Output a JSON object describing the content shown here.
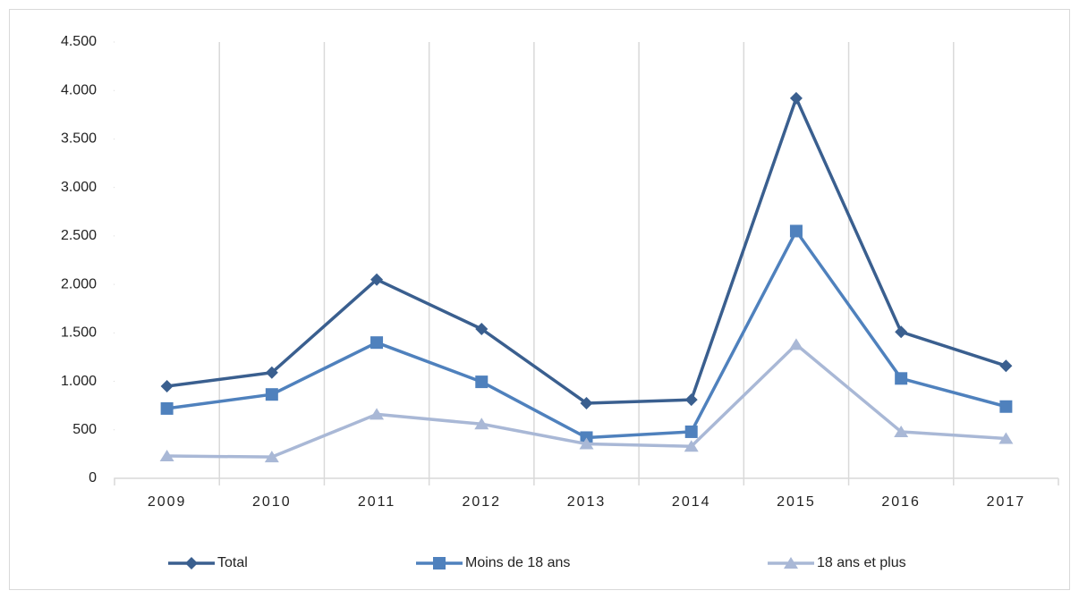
{
  "chart_data": {
    "type": "line",
    "categories": [
      "2009",
      "2010",
      "2011",
      "2012",
      "2013",
      "2014",
      "2015",
      "2016",
      "2017"
    ],
    "series": [
      {
        "name": "Total",
        "color": "#3a5f8f",
        "marker": "diamond",
        "values": [
          950,
          1090,
          2050,
          1540,
          775,
          810,
          3920,
          1510,
          1160
        ]
      },
      {
        "name": "Moins de 18 ans",
        "color": "#4f81bd",
        "marker": "square",
        "values": [
          720,
          865,
          1400,
          995,
          420,
          480,
          2550,
          1030,
          740
        ]
      },
      {
        "name": "18 ans et plus",
        "color": "#a9b8d6",
        "marker": "triangle",
        "values": [
          230,
          220,
          660,
          560,
          355,
          330,
          1380,
          480,
          410
        ]
      }
    ],
    "ylim": [
      0,
      4500
    ],
    "yticks": [
      0,
      500,
      {
        "value": 1000,
        "label": "1.000"
      },
      {
        "value": 1500,
        "label": "1.500"
      },
      {
        "value": 2000,
        "label": "2.000"
      },
      {
        "value": 2500,
        "label": "2.500"
      },
      {
        "value": 3000,
        "label": "3.000"
      },
      {
        "value": 3500,
        "label": "3.500"
      },
      {
        "value": 4000,
        "label": "4.000"
      },
      {
        "value": 4500,
        "label": "4.500"
      }
    ],
    "legend": "bottom"
  }
}
